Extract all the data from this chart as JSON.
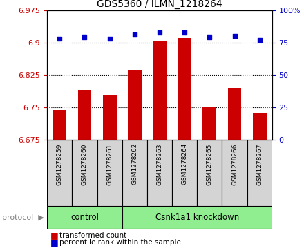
{
  "title": "GDS5360 / ILMN_1218264",
  "samples": [
    "GSM1278259",
    "GSM1278260",
    "GSM1278261",
    "GSM1278262",
    "GSM1278263",
    "GSM1278264",
    "GSM1278265",
    "GSM1278266",
    "GSM1278267"
  ],
  "bar_values": [
    6.745,
    6.79,
    6.779,
    6.838,
    6.905,
    6.91,
    6.751,
    6.795,
    6.737
  ],
  "percentile_values": [
    78,
    79,
    78,
    81,
    83,
    83,
    79,
    80,
    77
  ],
  "y_min": 6.675,
  "y_max": 6.975,
  "y_ticks": [
    6.675,
    6.75,
    6.825,
    6.9,
    6.975
  ],
  "y_right_ticks": [
    0,
    25,
    50,
    75,
    100
  ],
  "bar_color": "#cc0000",
  "dot_color": "#0000cc",
  "control_label": "control",
  "knockdown_label": "Csnk1a1 knockdown",
  "control_count": 3,
  "protocol_label": "protocol",
  "legend_bar": "transformed count",
  "legend_dot": "percentile rank within the sample",
  "bg_color": "#ffffff",
  "sample_box_color": "#d4d4d4",
  "group_color": "#90ee90"
}
